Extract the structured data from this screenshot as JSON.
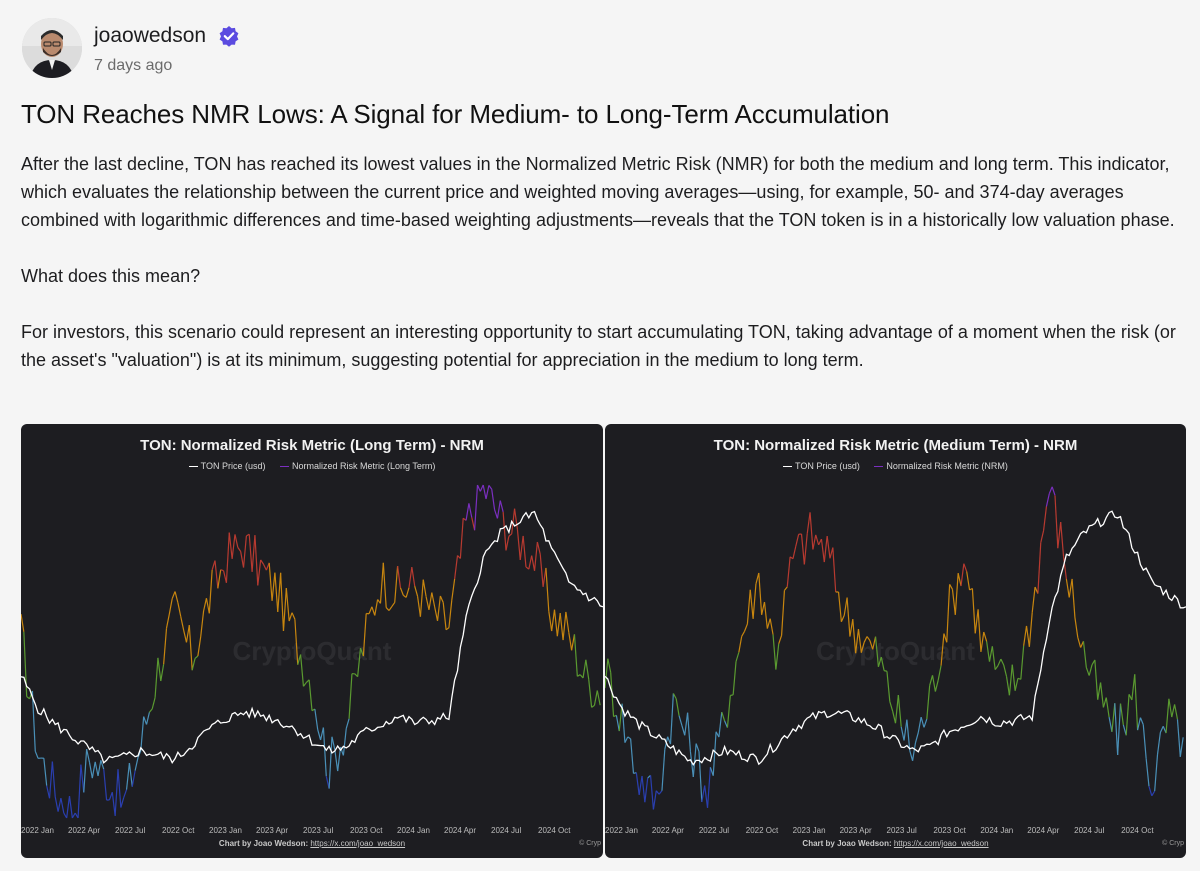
{
  "post": {
    "author": "joaowedson",
    "time": "7 days ago",
    "title": "TON Reaches NMR Lows: A Signal for Medium- to Long-Term Accumulation",
    "paragraphs": [
      "After the last decline, TON has reached its lowest values in the Normalized Metric Risk (NMR) for both the medium and long term. This indicator, which evaluates the relationship between the current price and weighted moving averages—using, for example, 50- and 374-day averages combined with logarithmic differences and time-based weighting adjustments—reveals that the TON token is in a historically low valuation phase.",
      "What does this mean?",
      "For investors, this scenario could represent an interesting opportunity to start accumulating TON, taking advantage of a moment when the risk (or the asset's \"valuation\") is at its minimum, suggesting potential for appreciation in the medium to long term."
    ]
  },
  "colors": {
    "verified": "#5b4be0",
    "chart_bg": "#1d1d21",
    "price_line": "#ffffff",
    "risk_low": "#2a3fb0",
    "risk_lowmid": "#4a90b8",
    "risk_mid": "#5a9a30",
    "risk_midhigh": "#c8860f",
    "risk_high": "#b83a30",
    "risk_peak": "#7b2fc0"
  },
  "chart_data": [
    {
      "type": "line",
      "title": "TON: Normalized Risk Metric (Long Term) - NRM",
      "legend": [
        "TON Price (usd)",
        "Normalized Risk Metric (Long Term)"
      ],
      "watermark": "CryptoQuant",
      "x_ticks": [
        "2022 Jan",
        "2022 Apr",
        "2022 Jul",
        "2022 Oct",
        "2023 Jan",
        "2023 Apr",
        "2023 Jul",
        "2023 Oct",
        "2024 Jan",
        "2024 Apr",
        "2024 Jul",
        "2024 Oct"
      ],
      "credit_label": "Chart by Joao Wedson:",
      "credit_link": "https://x.com/joao_wedson",
      "copyright": "© Cryp",
      "series": [
        {
          "name": "Normalized Risk Metric (Long Term)",
          "x": [
            "2022 Jan",
            "2022 Feb",
            "2022 Mar",
            "2022 Apr",
            "2022 May",
            "2022 Jun",
            "2022 Jul",
            "2022 Aug",
            "2022 Sep",
            "2022 Oct",
            "2022 Nov",
            "2022 Dec",
            "2023 Jan",
            "2023 Feb",
            "2023 Mar",
            "2023 Apr",
            "2023 May",
            "2023 Jun",
            "2023 Jul",
            "2023 Aug",
            "2023 Sep",
            "2023 Oct",
            "2023 Nov",
            "2023 Dec",
            "2024 Jan",
            "2024 Feb",
            "2024 Mar",
            "2024 Apr",
            "2024 May",
            "2024 Jun",
            "2024 Jul",
            "2024 Aug",
            "2024 Sep",
            "2024 Oct",
            "2024 Nov"
          ],
          "values": [
            0.55,
            0.2,
            0.08,
            0.02,
            0.18,
            0.12,
            0.04,
            0.22,
            0.45,
            0.62,
            0.48,
            0.66,
            0.78,
            0.82,
            0.75,
            0.68,
            0.55,
            0.4,
            0.15,
            0.28,
            0.52,
            0.72,
            0.68,
            0.7,
            0.62,
            0.58,
            0.88,
            1.0,
            0.9,
            0.85,
            0.78,
            0.62,
            0.55,
            0.42,
            0.38
          ]
        },
        {
          "name": "TON Price (usd)",
          "x": [
            "2022 Jan",
            "2022 Feb",
            "2022 Mar",
            "2022 Apr",
            "2022 May",
            "2022 Jun",
            "2022 Jul",
            "2022 Aug",
            "2022 Sep",
            "2022 Oct",
            "2022 Nov",
            "2022 Dec",
            "2023 Jan",
            "2023 Feb",
            "2023 Mar",
            "2023 Apr",
            "2023 May",
            "2023 Jun",
            "2023 Jul",
            "2023 Aug",
            "2023 Sep",
            "2023 Oct",
            "2023 Nov",
            "2023 Dec",
            "2024 Jan",
            "2024 Feb",
            "2024 Mar",
            "2024 Apr",
            "2024 May",
            "2024 Jun",
            "2024 Jul",
            "2024 Aug",
            "2024 Sep",
            "2024 Oct",
            "2024 Nov"
          ],
          "values": [
            3.4,
            2.6,
            2.2,
            1.9,
            1.6,
            1.3,
            1.4,
            1.55,
            1.45,
            1.35,
            1.7,
            2.1,
            2.35,
            2.5,
            2.45,
            2.3,
            2.1,
            1.8,
            1.55,
            1.65,
            2.0,
            2.2,
            2.4,
            2.25,
            2.3,
            2.4,
            4.8,
            6.3,
            6.9,
            7.2,
            7.4,
            6.5,
            5.7,
            5.4,
            5.1
          ]
        }
      ]
    },
    {
      "type": "line",
      "title": "TON: Normalized Risk Metric (Medium Term) - NRM",
      "legend": [
        "TON Price (usd)",
        "Normalized Risk Metric (NRM)"
      ],
      "watermark": "CryptoQuant",
      "x_ticks": [
        "2022 Jan",
        "2022 Apr",
        "2022 Jul",
        "2022 Oct",
        "2023 Jan",
        "2023 Apr",
        "2023 Jul",
        "2023 Oct",
        "2024 Jan",
        "2024 Apr",
        "2024 Jul",
        "2024 Oct"
      ],
      "credit_label": "Chart by Joao Wedson:",
      "credit_link": "https://x.com/joao_wedson",
      "copyright": "© Cryp",
      "series": [
        {
          "name": "Normalized Risk Metric (NRM)",
          "x": [
            "2022 Jan",
            "2022 Feb",
            "2022 Mar",
            "2022 Apr",
            "2022 May",
            "2022 Jun",
            "2022 Jul",
            "2022 Aug",
            "2022 Sep",
            "2022 Oct",
            "2022 Nov",
            "2022 Dec",
            "2023 Jan",
            "2023 Feb",
            "2023 Mar",
            "2023 Apr",
            "2023 May",
            "2023 Jun",
            "2023 Jul",
            "2023 Aug",
            "2023 Sep",
            "2023 Oct",
            "2023 Nov",
            "2023 Dec",
            "2024 Jan",
            "2024 Feb",
            "2024 Mar",
            "2024 Apr",
            "2024 May",
            "2024 Jun",
            "2024 Jul",
            "2024 Aug",
            "2024 Sep",
            "2024 Oct",
            "2024 Nov"
          ],
          "values": [
            0.45,
            0.3,
            0.12,
            0.05,
            0.35,
            0.22,
            0.08,
            0.3,
            0.55,
            0.72,
            0.5,
            0.78,
            0.85,
            0.8,
            0.62,
            0.55,
            0.48,
            0.32,
            0.2,
            0.35,
            0.6,
            0.78,
            0.55,
            0.42,
            0.4,
            0.62,
            1.0,
            0.75,
            0.5,
            0.35,
            0.25,
            0.38,
            0.1,
            0.3,
            0.22
          ]
        },
        {
          "name": "TON Price (usd)",
          "x": [
            "2022 Jan",
            "2022 Feb",
            "2022 Mar",
            "2022 Apr",
            "2022 May",
            "2022 Jun",
            "2022 Jul",
            "2022 Aug",
            "2022 Sep",
            "2022 Oct",
            "2022 Nov",
            "2022 Dec",
            "2023 Jan",
            "2023 Feb",
            "2023 Mar",
            "2023 Apr",
            "2023 May",
            "2023 Jun",
            "2023 Jul",
            "2023 Aug",
            "2023 Sep",
            "2023 Oct",
            "2023 Nov",
            "2023 Dec",
            "2024 Jan",
            "2024 Feb",
            "2024 Mar",
            "2024 Apr",
            "2024 May",
            "2024 Jun",
            "2024 Jul",
            "2024 Aug",
            "2024 Sep",
            "2024 Oct",
            "2024 Nov"
          ],
          "values": [
            3.4,
            2.6,
            2.2,
            1.9,
            1.6,
            1.3,
            1.4,
            1.55,
            1.45,
            1.35,
            1.7,
            2.1,
            2.35,
            2.5,
            2.45,
            2.3,
            2.1,
            1.8,
            1.55,
            1.65,
            2.0,
            2.2,
            2.4,
            2.25,
            2.3,
            2.4,
            4.8,
            6.3,
            6.9,
            7.2,
            7.4,
            6.5,
            5.7,
            5.4,
            5.1
          ]
        }
      ]
    }
  ]
}
